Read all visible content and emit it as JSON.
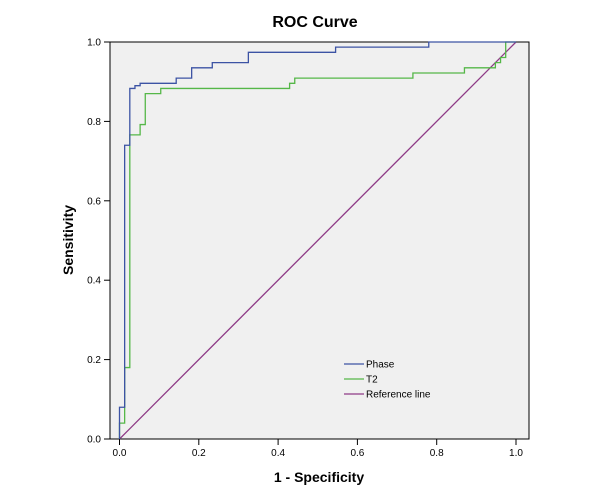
{
  "chart_data": {
    "type": "line",
    "title": "ROC Curve",
    "xlabel": "1 - Specificity",
    "ylabel": "Sensitivity",
    "xlim": [
      0.0,
      1.0
    ],
    "ylim": [
      0.0,
      1.0
    ],
    "xticks": [
      "0.0",
      "0.2",
      "0.4",
      "0.6",
      "0.8",
      "1.0"
    ],
    "yticks": [
      "0.0",
      "0.2",
      "0.4",
      "0.6",
      "0.8",
      "1.0"
    ],
    "legend_position": "bottom-center",
    "series": [
      {
        "name": "Phase",
        "color": "#3c53a4",
        "x": [
          0,
          0,
          0.013,
          0.013,
          0.026,
          0.026,
          0.039,
          0.039,
          0.052,
          0.052,
          0.143,
          0.143,
          0.156,
          0.156,
          0.182,
          0.182,
          0.234,
          0.234,
          0.325,
          0.325,
          0.545,
          0.545,
          0.78,
          0.78,
          1.0
        ],
        "y": [
          0,
          0.08,
          0.08,
          0.74,
          0.74,
          0.883,
          0.883,
          0.89,
          0.89,
          0.896,
          0.896,
          0.909,
          0.909,
          0.909,
          0.909,
          0.935,
          0.935,
          0.948,
          0.948,
          0.974,
          0.974,
          0.987,
          0.987,
          1.0,
          1.0
        ]
      },
      {
        "name": "T2",
        "color": "#55b748",
        "x": [
          0,
          0,
          0.013,
          0.013,
          0.026,
          0.026,
          0.039,
          0.039,
          0.052,
          0.052,
          0.065,
          0.065,
          0.104,
          0.104,
          0.429,
          0.429,
          0.442,
          0.442,
          0.701,
          0.701,
          0.74,
          0.74,
          0.87,
          0.87,
          0.948,
          0.948,
          0.961,
          0.961,
          0.974,
          0.974,
          1.0
        ],
        "y": [
          0,
          0.04,
          0.04,
          0.18,
          0.18,
          0.766,
          0.766,
          0.766,
          0.766,
          0.792,
          0.792,
          0.87,
          0.87,
          0.883,
          0.883,
          0.896,
          0.896,
          0.909,
          0.909,
          0.909,
          0.909,
          0.922,
          0.922,
          0.935,
          0.935,
          0.948,
          0.948,
          0.961,
          0.961,
          1.0,
          1.0
        ]
      },
      {
        "name": "Reference line",
        "color": "#8e3a86",
        "x": [
          0,
          1
        ],
        "y": [
          0,
          1
        ]
      }
    ]
  }
}
